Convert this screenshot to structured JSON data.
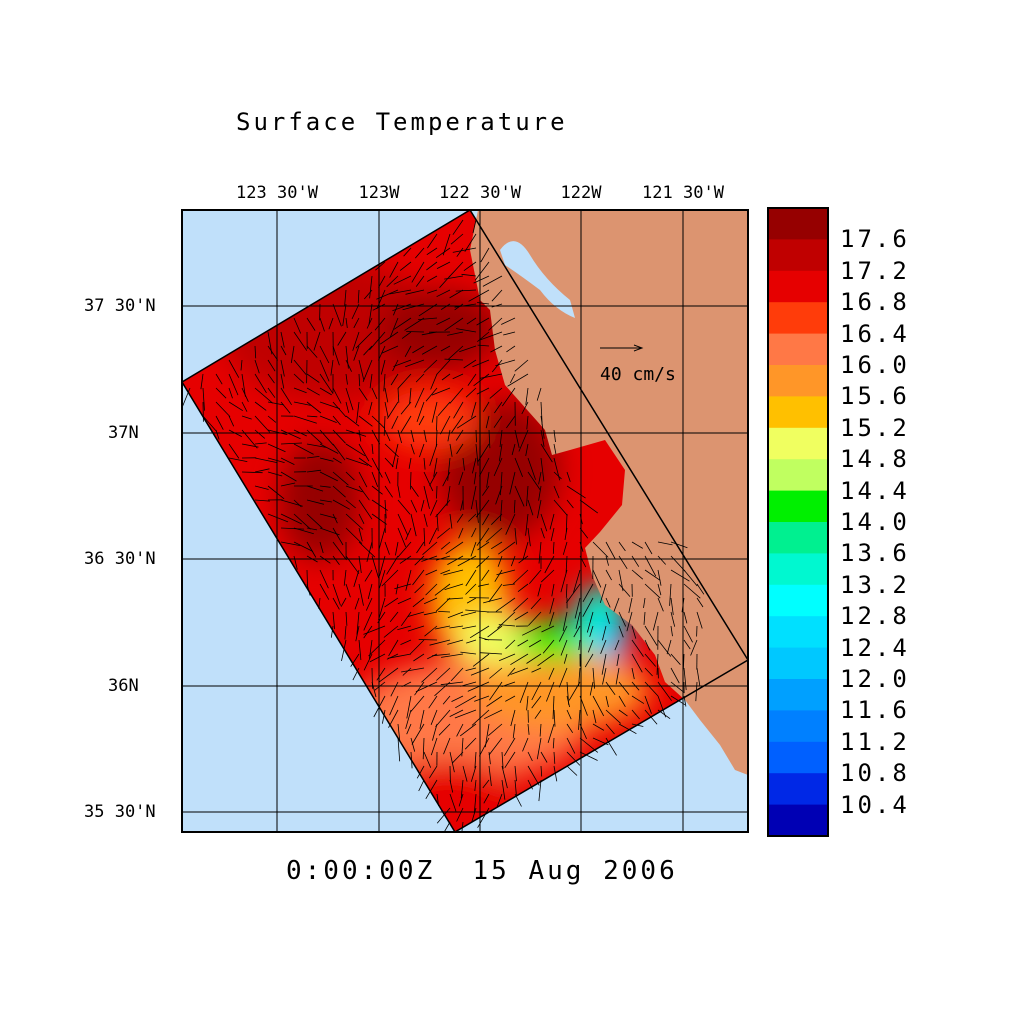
{
  "title": "Surface Temperature",
  "timestamp": "0:00:00Z  15 Aug 2006",
  "lon_labels": [
    "123 30'W",
    "123W",
    "122 30'W",
    "122W",
    "121 30'W"
  ],
  "lat_labels": [
    "37 30'N",
    "37N",
    "36 30'N",
    "36N",
    "35 30'N"
  ],
  "vector_reference": {
    "label": "40 cm/s",
    "speed_cm_s": 40
  },
  "colors": {
    "ocean": "#c0e0fa",
    "land": "#dc9470"
  },
  "chart_data": {
    "type": "heatmap",
    "title": "Surface Temperature",
    "projection": "lat-lon map with current vectors",
    "lon_range": [
      -123.97,
      -121.32
    ],
    "lat_range": [
      35.42,
      37.88
    ],
    "colorbar": {
      "labels": [
        "17.6",
        "17.2",
        "16.8",
        "16.4",
        "16.0",
        "15.6",
        "15.2",
        "14.8",
        "14.4",
        "14.0",
        "13.6",
        "13.2",
        "12.8",
        "12.4",
        "12.0",
        "11.6",
        "11.2",
        "10.8",
        "10.4"
      ],
      "colors": [
        "#960000",
        "#c00000",
        "#e60000",
        "#ff3c0a",
        "#ff7846",
        "#ff9628",
        "#ffc000",
        "#f0ff60",
        "#c0ff60",
        "#00f000",
        "#00f090",
        "#00f8d0",
        "#00ffff",
        "#00e0ff",
        "#00c8ff",
        "#00a0ff",
        "#0080ff",
        "#0060ff",
        "#0028e6",
        "#0000b4"
      ]
    }
  }
}
